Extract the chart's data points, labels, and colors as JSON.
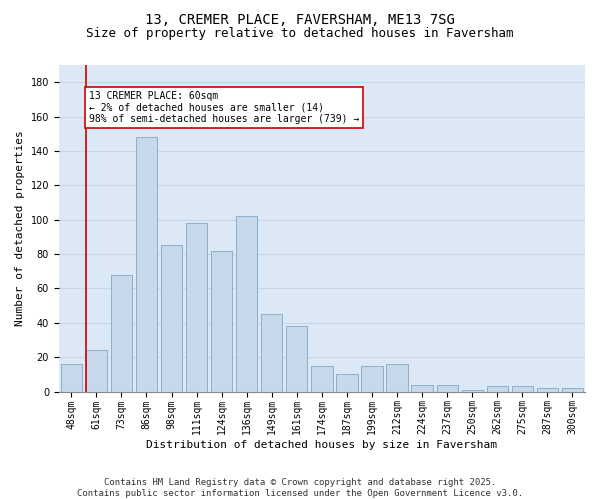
{
  "title1": "13, CREMER PLACE, FAVERSHAM, ME13 7SG",
  "title2": "Size of property relative to detached houses in Faversham",
  "xlabel": "Distribution of detached houses by size in Faversham",
  "ylabel": "Number of detached properties",
  "categories": [
    "48sqm",
    "61sqm",
    "73sqm",
    "86sqm",
    "98sqm",
    "111sqm",
    "124sqm",
    "136sqm",
    "149sqm",
    "161sqm",
    "174sqm",
    "187sqm",
    "199sqm",
    "212sqm",
    "224sqm",
    "237sqm",
    "250sqm",
    "262sqm",
    "275sqm",
    "287sqm",
    "300sqm"
  ],
  "values": [
    16,
    24,
    68,
    148,
    85,
    98,
    82,
    102,
    45,
    38,
    15,
    10,
    15,
    16,
    4,
    4,
    1,
    3,
    3,
    2,
    2
  ],
  "bar_color": "#c8d8eb",
  "bar_edge_color": "#8ab0cc",
  "vline_color": "#cc0000",
  "annotation_text": "13 CREMER PLACE: 60sqm\n← 2% of detached houses are smaller (14)\n98% of semi-detached houses are larger (739) →",
  "annotation_box_color": "white",
  "annotation_box_edge": "#cc0000",
  "ylim": [
    0,
    190
  ],
  "yticks": [
    0,
    20,
    40,
    60,
    80,
    100,
    120,
    140,
    160,
    180
  ],
  "grid_color": "#c8d4e8",
  "background_color": "#dce8f5",
  "footer": "Contains HM Land Registry data © Crown copyright and database right 2025.\nContains public sector information licensed under the Open Government Licence v3.0.",
  "title_fontsize": 10,
  "subtitle_fontsize": 9,
  "axis_label_fontsize": 8,
  "tick_fontsize": 7,
  "footer_fontsize": 6.5
}
